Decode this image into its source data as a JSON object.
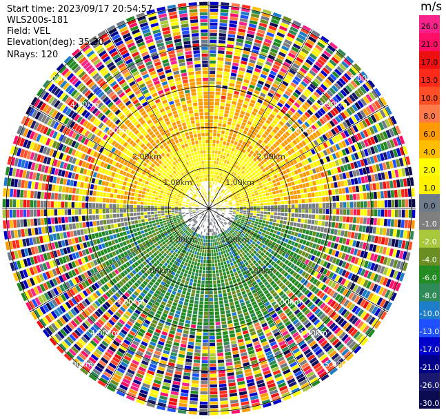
{
  "header": {
    "start_time": "Start time: 2023/09/17 20:54:57",
    "instrument": "WLS200s-181",
    "field": "Field: VEL",
    "elevation": "Elevation(deg): 35.30",
    "nrays": "NRays: 120"
  },
  "colorbar": {
    "unit": "m/s",
    "ticks": [
      "26.0",
      "21.0",
      "17.0",
      "13.0",
      "10.0",
      "8.0",
      "6.0",
      "4.0",
      "2.0",
      "1.0",
      "0.0",
      "-1.0",
      "-2.0",
      "-4.0",
      "-6.0",
      "-8.0",
      "-10.0",
      "-13.0",
      "-17.0",
      "-21.0",
      "-26.0",
      "-30.0"
    ],
    "colors": [
      "#f7238a",
      "#ff0d66",
      "#ee1010",
      "#ff2a1a",
      "#ff4d26",
      "#ff7a4a",
      "#ff9a00",
      "#ffbf00",
      "#ffff00",
      "#fff200",
      "#6e7b8b",
      "#7f7f7f",
      "#a8c83c",
      "#6b8e23",
      "#228b22",
      "#2e8b57",
      "#1e7dc8",
      "#1e50ff",
      "#0000cd",
      "#00008b",
      "#191970",
      "#0a0a50"
    ]
  },
  "chart_data": {
    "type": "heatmap",
    "projection": "polar PPI",
    "field": "VEL",
    "units": "m/s",
    "nrays": 120,
    "elevation_deg": 35.3,
    "vmin": -30.0,
    "vmax": 26.0,
    "range_rings_km": [
      1.0,
      2.0,
      3.0,
      4.0,
      5.0
    ],
    "range_ring_labels": [
      "1.00km",
      "2.00km",
      "3.00km",
      "4.00km",
      "5.00km"
    ],
    "max_range_km": 5.1,
    "spoke_angles_deg": [
      0,
      30,
      60,
      90,
      120,
      150,
      180,
      210,
      240,
      270,
      300,
      330
    ],
    "structure": {
      "near_range_north": "positive 1–6 m/s (yellow/orange)",
      "near_range_south": "negative -1 to -8 m/s (gray/green)",
      "far_range": "noisy, all values"
    }
  }
}
